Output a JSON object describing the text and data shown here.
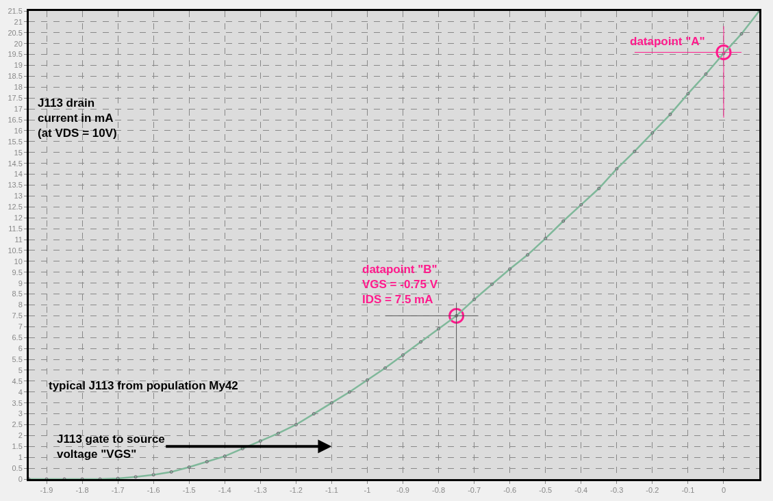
{
  "chart_data": {
    "type": "line",
    "ylabel": "J113 drain\ncurrent in mA\n(at VDS = 10V)",
    "xlabel": "J113 gate to source\nvoltage \"VGS\"",
    "annotations": [
      "typical J113 from population My42",
      {
        "text": "datapoint \"A\"",
        "x": 0,
        "y": 19.6
      },
      {
        "text": "datapoint \"B\"\nVGS = -0.75 V\nIDS = 7.5 mA",
        "x": -0.75,
        "y": 7.5
      }
    ],
    "x": [
      -1.95,
      -1.9,
      -1.85,
      -1.8,
      -1.75,
      -1.7,
      -1.65,
      -1.6,
      -1.55,
      -1.5,
      -1.45,
      -1.4,
      -1.35,
      -1.3,
      -1.25,
      -1.2,
      -1.15,
      -1.1,
      -1.05,
      -1.0,
      -0.95,
      -0.9,
      -0.85,
      -0.8,
      -0.75,
      -0.7,
      -0.65,
      -0.6,
      -0.55,
      -0.5,
      -0.45,
      -0.4,
      -0.35,
      -0.3,
      -0.25,
      -0.2,
      -0.15,
      -0.1,
      -0.05,
      0,
      0.05,
      0.1
    ],
    "series": [
      {
        "type": "scatter",
        "color": "#ff1a8c",
        "marker": "circle",
        "x": [
          0,
          -0.75
        ],
        "values": [
          19.6,
          7.5
        ]
      },
      {
        "color": "#7fb89a",
        "values": [
          0,
          0,
          0,
          0,
          0,
          0.03,
          0.1,
          0.2,
          0.33,
          0.55,
          0.8,
          1.05,
          1.4,
          1.75,
          2.1,
          2.5,
          3.0,
          3.5,
          4.0,
          4.55,
          5.1,
          5.7,
          6.3,
          6.9,
          7.5,
          8.25,
          8.95,
          9.65,
          10.3,
          11.05,
          11.85,
          12.6,
          13.35,
          14.25,
          15.05,
          15.9,
          16.75,
          17.7,
          18.6,
          19.55,
          20.45,
          21.5
        ]
      }
    ],
    "xlim": [
      -1.95,
      0.1
    ],
    "xticks": [
      -1.9,
      -1.8,
      -1.7,
      -1.6,
      -1.5,
      -1.4,
      -1.3,
      -1.2,
      -1.1,
      -1,
      -0.9,
      -0.8,
      -0.7,
      -0.6,
      -0.5,
      -0.4,
      -0.3,
      -0.2,
      -0.1,
      0
    ],
    "ylim": [
      0,
      21.5
    ],
    "yticks": [
      0,
      0.5,
      1,
      1.5,
      2,
      2.5,
      3,
      3.5,
      4,
      4.5,
      5,
      5.5,
      6,
      6.5,
      7,
      7.5,
      8,
      8.5,
      9,
      9.5,
      10,
      10.5,
      11,
      11.5,
      12,
      12.5,
      13,
      13.5,
      14,
      14.5,
      15,
      15.5,
      16,
      16.5,
      17,
      17.5,
      18,
      18.5,
      19,
      19.5,
      20,
      20.5,
      21,
      21.5
    ],
    "grid": true,
    "marker": "circle",
    "line_style": "solid"
  }
}
